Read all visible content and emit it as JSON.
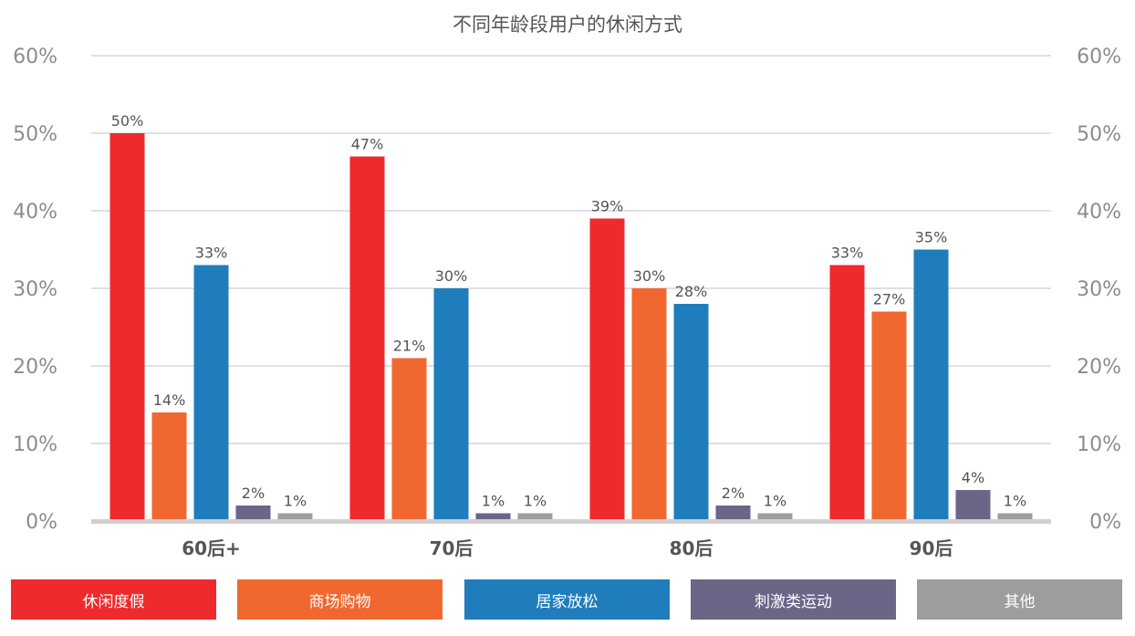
{
  "chart_data": {
    "type": "bar",
    "title": "不同年龄段用户的休闲方式",
    "categories": [
      "60后+",
      "70后",
      "80后",
      "90后"
    ],
    "series": [
      {
        "name": "休闲度假",
        "color": "#ee2a2d",
        "values": [
          50,
          47,
          39,
          33
        ],
        "labels": [
          "50%",
          "47%",
          "39%",
          "33%"
        ]
      },
      {
        "name": "商场购物",
        "color": "#f0682f",
        "values": [
          14,
          21,
          30,
          27
        ],
        "labels": [
          "14%",
          "21%",
          "30%",
          "27%"
        ]
      },
      {
        "name": "居家放松",
        "color": "#1f7dbc",
        "values": [
          33,
          30,
          28,
          35
        ],
        "labels": [
          "33%",
          "30%",
          "28%",
          "35%"
        ]
      },
      {
        "name": "刺激类运动",
        "color": "#6b6587",
        "values": [
          2,
          1,
          2,
          4
        ],
        "labels": [
          "2%",
          "1%",
          "2%",
          "4%"
        ]
      },
      {
        "name": "其他",
        "color": "#9d9da0",
        "values": [
          1,
          1,
          1,
          1
        ],
        "labels": [
          "1%",
          "1%",
          "1%",
          "1%"
        ]
      }
    ],
    "ylim": [
      0,
      60
    ],
    "yticks": [
      0,
      10,
      20,
      30,
      40,
      50,
      60
    ],
    "ytick_labels": [
      "0%",
      "10%",
      "20%",
      "30%",
      "40%",
      "50%",
      "60%"
    ],
    "xlabel": "",
    "ylabel": "",
    "grid": true,
    "legend_position": "bottom"
  }
}
